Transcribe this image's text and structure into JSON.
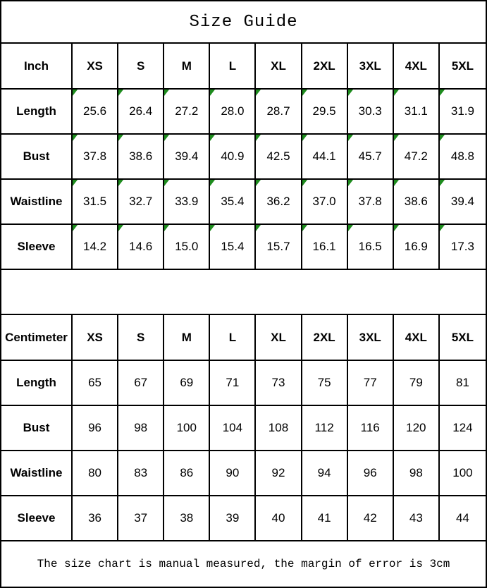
{
  "title": "Size Guide",
  "footer_note": "The size chart is manual measured, the margin of error is 3cm",
  "colors": {
    "border": "#000000",
    "background": "#ffffff",
    "corner_marker_green": "#1e8c1e"
  },
  "tables": [
    {
      "unit_label": "Inch",
      "sizes": [
        "XS",
        "S",
        "M",
        "L",
        "XL",
        "2XL",
        "3XL",
        "4XL",
        "5XL"
      ],
      "has_corner_markers": true,
      "rows": [
        {
          "label": "Length",
          "values": [
            "25.6",
            "26.4",
            "27.2",
            "28.0",
            "28.7",
            "29.5",
            "30.3",
            "31.1",
            "31.9"
          ]
        },
        {
          "label": "Bust",
          "values": [
            "37.8",
            "38.6",
            "39.4",
            "40.9",
            "42.5",
            "44.1",
            "45.7",
            "47.2",
            "48.8"
          ]
        },
        {
          "label": "Waistline",
          "values": [
            "31.5",
            "32.7",
            "33.9",
            "35.4",
            "36.2",
            "37.0",
            "37.8",
            "38.6",
            "39.4"
          ]
        },
        {
          "label": "Sleeve",
          "values": [
            "14.2",
            "14.6",
            "15.0",
            "15.4",
            "15.7",
            "16.1",
            "16.5",
            "16.9",
            "17.3"
          ]
        }
      ]
    },
    {
      "unit_label": "Centimeter",
      "sizes": [
        "XS",
        "S",
        "M",
        "L",
        "XL",
        "2XL",
        "3XL",
        "4XL",
        "5XL"
      ],
      "has_corner_markers": false,
      "rows": [
        {
          "label": "Length",
          "values": [
            "65",
            "67",
            "69",
            "71",
            "73",
            "75",
            "77",
            "79",
            "81"
          ]
        },
        {
          "label": "Bust",
          "values": [
            "96",
            "98",
            "100",
            "104",
            "108",
            "112",
            "116",
            "120",
            "124"
          ]
        },
        {
          "label": "Waistline",
          "values": [
            "80",
            "83",
            "86",
            "90",
            "92",
            "94",
            "96",
            "98",
            "100"
          ]
        },
        {
          "label": "Sleeve",
          "values": [
            "36",
            "37",
            "38",
            "39",
            "40",
            "41",
            "42",
            "43",
            "44"
          ]
        }
      ]
    }
  ]
}
